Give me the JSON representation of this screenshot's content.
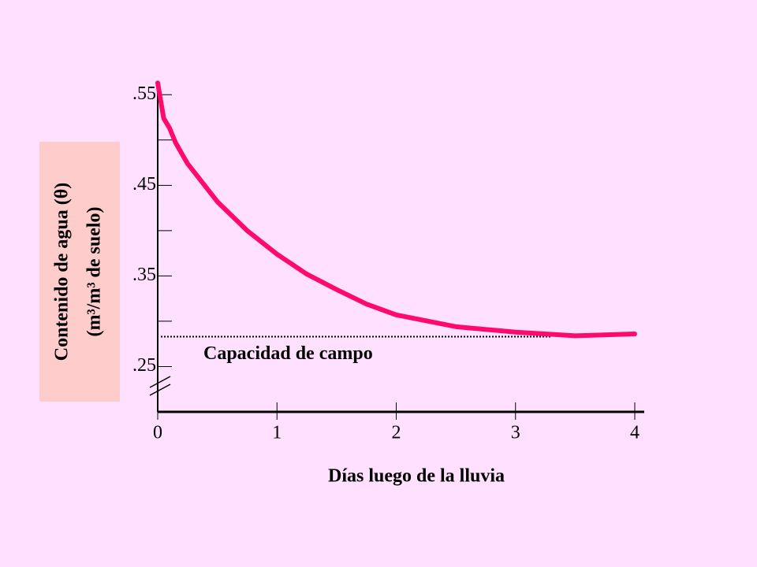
{
  "chart_data": {
    "type": "line",
    "x_label": "Días luego de la lluvia",
    "y_label": [
      "Contenido de agua (θ)",
      "(m³/m³ de suelo)"
    ],
    "x": [
      0,
      0.05,
      0.1,
      0.15,
      0.25,
      0.5,
      0.75,
      1.0,
      1.25,
      1.5,
      1.75,
      2.0,
      2.5,
      3.0,
      3.5,
      4.0
    ],
    "series": [
      {
        "color": "#ff0a6c",
        "values": [
          0.563,
          0.524,
          0.513,
          0.497,
          0.474,
          0.432,
          0.4,
          0.374,
          0.352,
          0.335,
          0.319,
          0.307,
          0.294,
          0.288,
          0.284,
          0.286
        ]
      }
    ],
    "xlim": [
      0,
      4
    ],
    "xticks": [
      0,
      1,
      2,
      3,
      4
    ],
    "ylim": [
      0.2,
      0.565
    ],
    "yticks": [
      {
        "value": 0.55,
        "label": ".55"
      },
      {
        "value": 0.45,
        "label": ".45"
      },
      {
        "value": 0.35,
        "label": ".35"
      },
      {
        "value": 0.25,
        "label": ".25"
      }
    ],
    "minor_yticks": [
      0.5,
      0.4,
      0.3
    ],
    "reference_line": {
      "value": 0.283,
      "label": "Capacidad de campo"
    }
  }
}
